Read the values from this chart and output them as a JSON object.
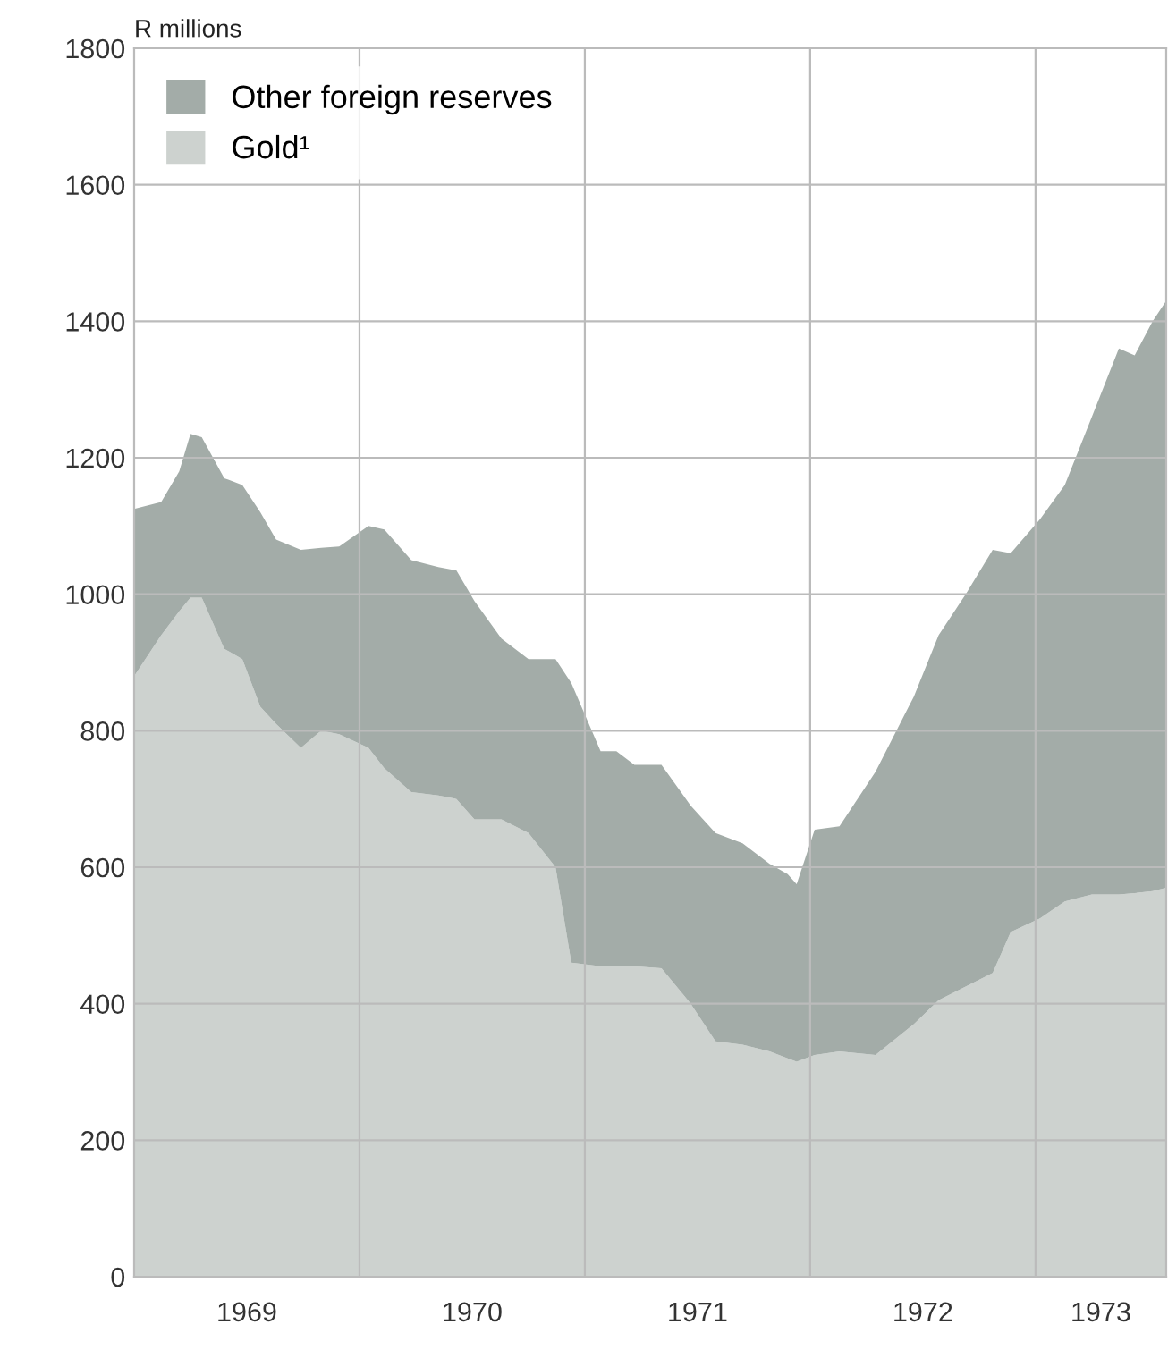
{
  "chart_data": {
    "type": "area",
    "stacked": true,
    "ylabel": "R millions",
    "legend": "top left",
    "grid": true,
    "x": [
      1969.0,
      1969.12,
      1969.2,
      1969.25,
      1969.3,
      1969.4,
      1969.48,
      1969.56,
      1969.63,
      1969.74,
      1969.83,
      1969.91,
      1970.04,
      1970.11,
      1970.23,
      1970.35,
      1970.43,
      1970.51,
      1970.63,
      1970.75,
      1970.87,
      1970.94,
      1971.07,
      1971.14,
      1971.22,
      1971.34,
      1971.47,
      1971.58,
      1971.7,
      1971.82,
      1971.9,
      1971.94,
      1972.02,
      1972.13,
      1972.29,
      1972.46,
      1972.57,
      1972.69,
      1972.81,
      1972.89,
      1973.02,
      1973.13,
      1973.25,
      1973.37,
      1973.44,
      1973.52,
      1973.58
    ],
    "series": [
      {
        "name": "Gold¹",
        "color": "#cdd2cf",
        "values": [
          880,
          940,
          975,
          995,
          995,
          920,
          905,
          835,
          810,
          775,
          800,
          795,
          775,
          745,
          710,
          705,
          700,
          670,
          670,
          650,
          600,
          460,
          455,
          455,
          455,
          452,
          400,
          345,
          340,
          330,
          320,
          315,
          325,
          330,
          325,
          370,
          405,
          425,
          445,
          505,
          525,
          550,
          560,
          560,
          562,
          565,
          570
        ]
      },
      {
        "name": "Other foreign reserves",
        "color": "#a3aca8",
        "values": [
          245,
          195,
          205,
          240,
          235,
          250,
          255,
          285,
          270,
          290,
          268,
          275,
          325,
          350,
          340,
          335,
          335,
          320,
          265,
          255,
          305,
          410,
          315,
          315,
          295,
          298,
          290,
          305,
          295,
          275,
          270,
          260,
          330,
          330,
          415,
          480,
          535,
          575,
          620,
          555,
          585,
          610,
          700,
          800,
          788,
          835,
          860
        ]
      }
    ],
    "xlim": [
      1969,
      1973.58
    ],
    "xticks": [
      {
        "value": 1969.5,
        "label": "1969"
      },
      {
        "value": 1970,
        "label": null
      },
      {
        "value": 1970.5,
        "label": "1970"
      },
      {
        "value": 1971,
        "label": null
      },
      {
        "value": 1971.5,
        "label": "1971"
      },
      {
        "value": 1972,
        "label": null
      },
      {
        "value": 1972.5,
        "label": "1972"
      },
      {
        "value": 1973,
        "label": null
      },
      {
        "value": 1973.29,
        "label": "1973"
      }
    ],
    "ylim": [
      0,
      1800
    ],
    "yticks": [
      0,
      200,
      400,
      600,
      800,
      1000,
      1200,
      1400,
      1600,
      1800
    ]
  }
}
